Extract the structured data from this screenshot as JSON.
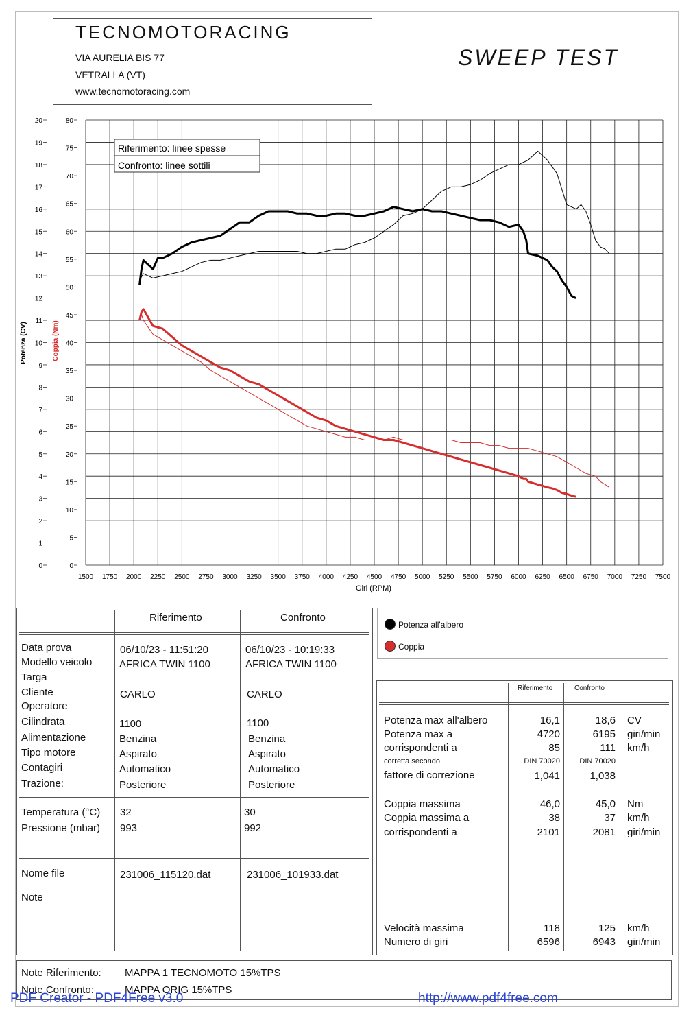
{
  "header": {
    "company": "TECNOMOTORACING",
    "address1": "VIA AURELIA BIS 77",
    "address2": "VETRALLA (VT)",
    "website": "www.tecnomotoracing.com",
    "test_title": "SWEEP TEST"
  },
  "legend_box": {
    "line1": "Riferimento: linee spesse",
    "line2": "Confronto: linee sottili"
  },
  "chart_data": {
    "type": "line",
    "xlabel": "Giri (RPM)",
    "ylabel_power": "Potenza (CV)",
    "ylabel_torque": "Coppia (Nm)",
    "xlim": [
      1500,
      7500
    ],
    "ylim_power": [
      0,
      20
    ],
    "ylim_torque": [
      0,
      80
    ],
    "x_ticks": [
      "1500",
      "1750",
      "2000",
      "2250",
      "2500",
      "2750",
      "3000",
      "3250",
      "3500",
      "3750",
      "4000",
      "4250",
      "4500",
      "4750",
      "5000",
      "5250",
      "5500",
      "5750",
      "6000",
      "6250",
      "6500",
      "6750",
      "7000",
      "7250",
      "7500"
    ],
    "y_power_ticks": [
      "0",
      "1",
      "2",
      "3",
      "4",
      "5",
      "6",
      "7",
      "8",
      "9",
      "10",
      "11",
      "12",
      "13",
      "14",
      "15",
      "16",
      "17",
      "18",
      "19",
      "20"
    ],
    "y_torque_ticks": [
      "0",
      "5",
      "10",
      "15",
      "20",
      "25",
      "30",
      "35",
      "40",
      "45",
      "50",
      "55",
      "60",
      "65",
      "70",
      "75",
      "80"
    ],
    "grid": true,
    "series": [
      {
        "name": "Potenza all'albero",
        "role": "power",
        "run": "reference",
        "color": "#000000",
        "x": [
          2060,
          2080,
          2100,
          2150,
          2200,
          2250,
          2300,
          2400,
          2500,
          2600,
          2700,
          2800,
          2900,
          3000,
          3100,
          3200,
          3300,
          3400,
          3500,
          3600,
          3700,
          3800,
          3900,
          4000,
          4100,
          4200,
          4300,
          4400,
          4500,
          4600,
          4700,
          4800,
          4900,
          5000,
          5100,
          5200,
          5300,
          5400,
          5500,
          5600,
          5700,
          5800,
          5900,
          6000,
          6050,
          6080,
          6100,
          6200,
          6300,
          6350,
          6400,
          6450,
          6500,
          6550,
          6596
        ],
        "y": [
          12.6,
          13.3,
          13.7,
          13.5,
          13.3,
          13.8,
          13.8,
          14.0,
          14.3,
          14.5,
          14.6,
          14.7,
          14.8,
          15.1,
          15.4,
          15.4,
          15.7,
          15.9,
          15.9,
          15.9,
          15.8,
          15.8,
          15.7,
          15.7,
          15.8,
          15.8,
          15.7,
          15.7,
          15.8,
          15.9,
          16.1,
          16.0,
          15.9,
          16.0,
          15.9,
          15.9,
          15.8,
          15.7,
          15.6,
          15.5,
          15.5,
          15.4,
          15.2,
          15.3,
          15.0,
          14.6,
          14.0,
          13.9,
          13.7,
          13.4,
          13.2,
          12.8,
          12.5,
          12.1,
          12.0
        ]
      },
      {
        "name": "Potenza all'albero",
        "role": "power",
        "run": "comparison",
        "color": "#000000",
        "x": [
          2060,
          2100,
          2200,
          2300,
          2400,
          2500,
          2600,
          2700,
          2800,
          2900,
          3000,
          3100,
          3200,
          3300,
          3400,
          3500,
          3600,
          3700,
          3800,
          3900,
          4000,
          4100,
          4200,
          4300,
          4400,
          4500,
          4600,
          4700,
          4800,
          4900,
          5000,
          5100,
          5200,
          5300,
          5400,
          5500,
          5600,
          5700,
          5800,
          5900,
          6000,
          6100,
          6200,
          6300,
          6400,
          6450,
          6500,
          6600,
          6650,
          6700,
          6750,
          6800,
          6850,
          6900,
          6943
        ],
        "y": [
          12.8,
          13.1,
          12.9,
          13.0,
          13.1,
          13.2,
          13.4,
          13.6,
          13.7,
          13.7,
          13.8,
          13.9,
          14.0,
          14.1,
          14.1,
          14.1,
          14.1,
          14.1,
          14.0,
          14.0,
          14.1,
          14.2,
          14.2,
          14.4,
          14.5,
          14.7,
          15.0,
          15.3,
          15.7,
          15.8,
          16.0,
          16.4,
          16.8,
          17.0,
          17.0,
          17.1,
          17.3,
          17.6,
          17.8,
          18.0,
          18.0,
          18.2,
          18.6,
          18.2,
          17.6,
          16.9,
          16.2,
          16.0,
          16.2,
          15.9,
          15.3,
          14.6,
          14.3,
          14.2,
          14.0
        ]
      },
      {
        "name": "Coppia",
        "role": "torque",
        "run": "reference",
        "color": "#d62d2d",
        "x": [
          2060,
          2080,
          2101,
          2150,
          2200,
          2300,
          2400,
          2500,
          2600,
          2700,
          2800,
          2900,
          3000,
          3100,
          3200,
          3300,
          3400,
          3500,
          3600,
          3700,
          3800,
          3900,
          4000,
          4100,
          4200,
          4300,
          4400,
          4500,
          4600,
          4700,
          4800,
          4900,
          5000,
          5100,
          5200,
          5300,
          5400,
          5500,
          5600,
          5700,
          5800,
          5900,
          6000,
          6050,
          6080,
          6100,
          6200,
          6300,
          6350,
          6400,
          6450,
          6500,
          6550,
          6596
        ],
        "y": [
          44.0,
          45.5,
          46.0,
          44.5,
          43.0,
          42.5,
          41.0,
          39.5,
          38.5,
          37.5,
          36.5,
          35.5,
          35.0,
          34.0,
          33.0,
          32.5,
          31.5,
          30.5,
          29.5,
          28.5,
          27.5,
          26.5,
          26.0,
          25.0,
          24.5,
          24.0,
          23.5,
          23.0,
          22.5,
          22.5,
          22.0,
          21.5,
          21.0,
          20.5,
          20.0,
          19.5,
          19.0,
          18.5,
          18.0,
          17.5,
          17.0,
          16.5,
          16.0,
          15.5,
          15.5,
          15.0,
          14.5,
          14.0,
          13.8,
          13.5,
          13.0,
          12.8,
          12.5,
          12.3
        ]
      },
      {
        "name": "Coppia",
        "role": "torque",
        "run": "comparison",
        "color": "#d62d2d",
        "x": [
          2060,
          2081,
          2100,
          2200,
          2300,
          2400,
          2500,
          2600,
          2700,
          2800,
          2900,
          3000,
          3100,
          3200,
          3300,
          3400,
          3500,
          3600,
          3700,
          3800,
          3900,
          4000,
          4100,
          4200,
          4300,
          4400,
          4500,
          4600,
          4700,
          4800,
          4900,
          5000,
          5100,
          5200,
          5300,
          5400,
          5500,
          5600,
          5700,
          5800,
          5900,
          6000,
          6100,
          6200,
          6300,
          6400,
          6500,
          6600,
          6700,
          6800,
          6850,
          6900,
          6943
        ],
        "y": [
          44.0,
          45.0,
          44.0,
          41.5,
          40.5,
          39.5,
          38.5,
          37.5,
          36.5,
          35.0,
          34.0,
          33.0,
          32.0,
          31.0,
          30.0,
          29.0,
          28.0,
          27.0,
          26.0,
          25.0,
          24.5,
          24.0,
          23.5,
          23.0,
          23.0,
          22.5,
          22.5,
          22.5,
          23.0,
          22.5,
          22.5,
          22.5,
          22.5,
          22.5,
          22.5,
          22.0,
          22.0,
          22.0,
          21.5,
          21.5,
          21.0,
          21.0,
          21.0,
          20.5,
          20.0,
          19.5,
          18.5,
          17.5,
          16.5,
          16.0,
          15.0,
          14.5,
          14.0
        ]
      }
    ]
  },
  "info_table": {
    "col_ref": "Riferimento",
    "col_cmp": "Confronto",
    "labels": [
      "Data prova",
      "Modello veicolo",
      "Targa",
      "Cliente",
      "Operatore",
      "Cilindrata",
      "Alimentazione",
      "Tipo motore",
      "Contagiri",
      "Trazione:"
    ],
    "ref": {
      "data": "06/10/23 - 11:51:20",
      "modello": "AFRICA TWIN 1100",
      "cliente": "CARLO",
      "cilindrata": "1100",
      "alimentazione": "Benzina",
      "tipo": "Aspirato",
      "contagiri": "Automatico",
      "trazione": "Posteriore",
      "temp": "32",
      "press": "993",
      "file": "231006_115120.dat"
    },
    "cmp": {
      "data": "06/10/23 - 10:19:33",
      "modello": "AFRICA TWIN 1100",
      "cliente": "CARLO",
      "cilindrata": "1100",
      "alimentazione": "Benzina",
      "tipo": "Aspirato",
      "contagiri": "Automatico",
      "trazione": "Posteriore",
      "temp": "30",
      "press": "992",
      "file": "231006_101933.dat"
    },
    "temp_label": "Temperatura (°C)",
    "press_label": "Pressione (mbar)",
    "file_label": "Nome file",
    "note_label": "Note"
  },
  "legend": {
    "power": "Potenza all'albero",
    "torque": "Coppia",
    "power_color": "#000000",
    "torque_color": "#d62d2d"
  },
  "results": {
    "col_ref": "Riferimento",
    "col_cmp": "Confronto",
    "rows": [
      {
        "label": "Potenza max all'albero",
        "ref": "16,1",
        "cmp": "18,6",
        "unit": "CV"
      },
      {
        "label": "Potenza max a",
        "ref": "4720",
        "cmp": "6195",
        "unit": "giri/min"
      },
      {
        "label": "corrispondenti a",
        "ref": "85",
        "cmp": "111",
        "unit": "km/h"
      },
      {
        "label": "corretta secondo",
        "ref": "DIN 70020",
        "cmp": "DIN 70020",
        "unit": ""
      },
      {
        "label": "fattore di correzione",
        "ref": "1,041",
        "cmp": "1,038",
        "unit": ""
      },
      {
        "label": "Coppia massima",
        "ref": "46,0",
        "cmp": "45,0",
        "unit": "Nm"
      },
      {
        "label": "Coppia massima a",
        "ref": "38",
        "cmp": "37",
        "unit": "km/h"
      },
      {
        "label": "corrispondenti a",
        "ref": "2101",
        "cmp": "2081",
        "unit": "giri/min"
      },
      {
        "label": "Velocità massima",
        "ref": "118",
        "cmp": "125",
        "unit": "km/h"
      },
      {
        "label": "Numero di giri",
        "ref": "6596",
        "cmp": "6943",
        "unit": "giri/min"
      }
    ]
  },
  "notes": {
    "ref_label": "Note Riferimento:",
    "ref_value": "MAPPA 1 TECNOMOTO 15%TPS",
    "cmp_label": "Note Confronto:",
    "cmp_value": "MAPPA ORIG 15%TPS"
  },
  "watermark": {
    "left": "PDF Creator - PDF4Free v3.0",
    "right": "http://www.pdf4free.com"
  }
}
